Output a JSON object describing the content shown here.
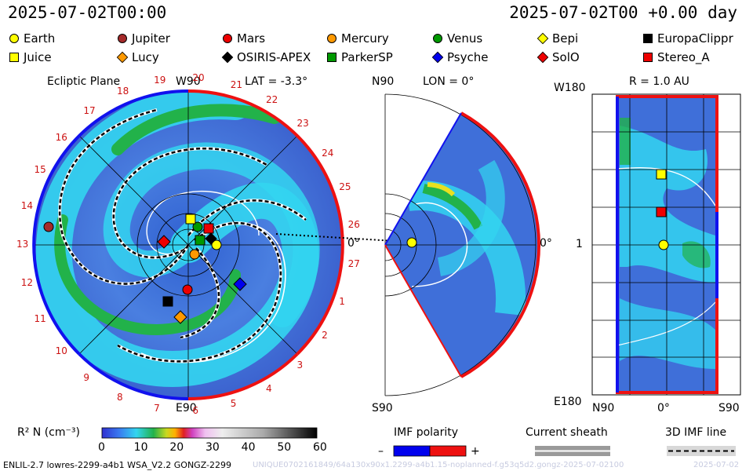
{
  "header": {
    "left_time": "2025-07-02T00:00",
    "right_time": "2025-07-02T00 +0.00 day"
  },
  "legend": [
    {
      "label": "Earth",
      "shape": "circle",
      "color": "#ffff00"
    },
    {
      "label": "Jupiter",
      "shape": "circle",
      "color": "#a52a2a"
    },
    {
      "label": "Mars",
      "shape": "circle",
      "color": "#ee0000"
    },
    {
      "label": "Mercury",
      "shape": "circle",
      "color": "#ff9900"
    },
    {
      "label": "Venus",
      "shape": "circle",
      "color": "#009900"
    },
    {
      "label": "Bepi",
      "shape": "diamond",
      "color": "#ffff00"
    },
    {
      "label": "EuropaClippr",
      "shape": "square",
      "color": "#000000"
    },
    {
      "label": "Juice",
      "shape": "square",
      "color": "#ffff00"
    },
    {
      "label": "Lucy",
      "shape": "diamond",
      "color": "#ff9900"
    },
    {
      "label": "OSIRIS-APEX",
      "shape": "diamond",
      "color": "#000000"
    },
    {
      "label": "ParkerSP",
      "shape": "square",
      "color": "#009900"
    },
    {
      "label": "Psyche",
      "shape": "diamond",
      "color": "#0000ee"
    },
    {
      "label": "SolO",
      "shape": "diamond",
      "color": "#ee0000"
    },
    {
      "label": "Stereo_A",
      "shape": "square",
      "color": "#ee0000"
    }
  ],
  "panels": {
    "ecliptic": {
      "title": "Ecliptic Plane",
      "top": "W90",
      "lat": "LAT = -3.3°",
      "bottom": "E90",
      "right": "0°"
    },
    "meridional": {
      "top": "N90",
      "lon": "LON = 0°",
      "bottom": "S90",
      "right": "0°"
    },
    "rmap": {
      "r": "R = 1.0 AU",
      "top": "W180",
      "bottom": "E180",
      "mid": "1",
      "x_left": "N90",
      "x_mid": "0°",
      "x_right": "S90"
    }
  },
  "carrington_labels": [
    "13",
    "14",
    "15",
    "16",
    "17",
    "18",
    "19",
    "20",
    "21",
    "22",
    "23",
    "24",
    "25",
    "26",
    "27",
    "1",
    "2",
    "3",
    "4",
    "5",
    "6",
    "7",
    "8",
    "9",
    "10",
    "11",
    "12"
  ],
  "colorbar": {
    "label": "R² N (cm⁻³)",
    "ticks": [
      "0",
      "10",
      "20",
      "30",
      "40",
      "50",
      "60"
    ]
  },
  "imf": {
    "label": "IMF polarity",
    "minus": "–",
    "plus": "+"
  },
  "sheath": {
    "label": "Current sheath"
  },
  "imf3d": {
    "label": "3D IMF line"
  },
  "footer": {
    "model": "ENLIL-2.7 lowres-2299-a4b1 WSA_V2.2 GONGZ-2299",
    "id": "UNIQUE0702161849/64a130x90x1.2299-a4b1.15-noplanned-f.g53q5d2.gongz-2025-07-02100",
    "date": "2025-07-02"
  },
  "colors": {
    "bg_blue": "#3f6fd9",
    "cyan": "#33d5f0",
    "green": "#22b24a",
    "rim_red": "#ee1111",
    "rim_blue": "#1111ee"
  }
}
